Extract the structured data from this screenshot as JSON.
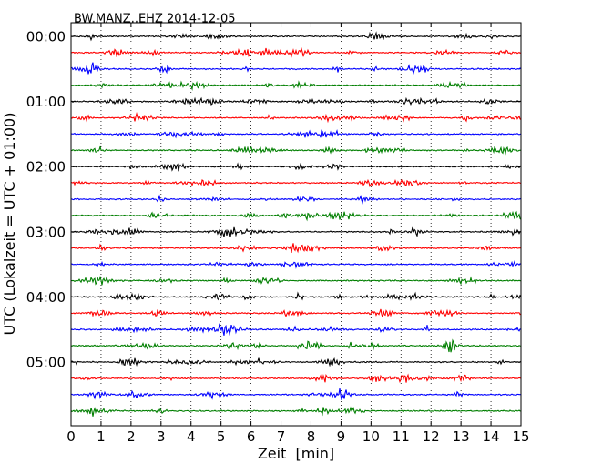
{
  "chart_data": {
    "type": "line",
    "title": "BW.MANZ..EHZ 2014-12-05",
    "xlabel": "Zeit  [min]",
    "ylabel": "UTC (Lokalzeit = UTC + 01:00)",
    "xlim": [
      0,
      15
    ],
    "x_ticks": [
      "0",
      "1",
      "2",
      "3",
      "4",
      "5",
      "6",
      "7",
      "8",
      "9",
      "10",
      "11",
      "12",
      "13",
      "14",
      "15"
    ],
    "y_tick_labels": [
      "00:00",
      "01:00",
      "02:00",
      "03:00",
      "04:00",
      "05:00"
    ],
    "grid": "vertical dotted",
    "trace_colors": [
      "#000000",
      "#ff0000",
      "#0000ff",
      "#007f00"
    ],
    "trace_count": 24,
    "trace_interval_minutes": 15
  }
}
